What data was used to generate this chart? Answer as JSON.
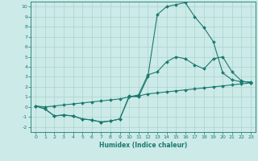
{
  "title": "",
  "xlabel": "Humidex (Indice chaleur)",
  "background_color": "#cceae7",
  "grid_color": "#aad4d0",
  "line_color": "#1a7a6e",
  "xlim": [
    -0.5,
    23.5
  ],
  "ylim": [
    -2.5,
    10.5
  ],
  "xticks": [
    0,
    1,
    2,
    3,
    4,
    5,
    6,
    7,
    8,
    9,
    10,
    11,
    12,
    13,
    14,
    15,
    16,
    17,
    18,
    19,
    20,
    21,
    22,
    23
  ],
  "yticks": [
    -2,
    -1,
    0,
    1,
    2,
    3,
    4,
    5,
    6,
    7,
    8,
    9,
    10
  ],
  "line1_x": [
    0,
    1,
    2,
    3,
    4,
    5,
    6,
    7,
    8,
    9,
    10,
    11,
    12,
    13,
    14,
    15,
    16,
    17,
    18,
    19,
    20,
    21,
    22,
    23
  ],
  "line1_y": [
    0.1,
    -0.2,
    -0.9,
    -0.8,
    -0.9,
    -1.2,
    -1.3,
    -1.5,
    -1.4,
    -1.2,
    1.1,
    1.0,
    3.0,
    9.2,
    10.0,
    10.2,
    10.4,
    9.0,
    7.9,
    6.5,
    3.4,
    2.7,
    2.5,
    2.5
  ],
  "line2_x": [
    0,
    1,
    2,
    3,
    4,
    5,
    6,
    7,
    8,
    9,
    10,
    11,
    12,
    13,
    14,
    15,
    16,
    17,
    18,
    19,
    20,
    21,
    22,
    23
  ],
  "line2_y": [
    0.1,
    -0.2,
    -0.9,
    -0.8,
    -0.9,
    -1.2,
    -1.3,
    -1.5,
    -1.4,
    -1.2,
    1.0,
    1.2,
    3.2,
    3.5,
    4.5,
    5.0,
    4.8,
    4.2,
    3.8,
    4.8,
    5.0,
    3.5,
    2.6,
    2.4
  ],
  "line3_x": [
    0,
    1,
    2,
    3,
    4,
    5,
    6,
    7,
    8,
    9,
    10,
    11,
    12,
    13,
    14,
    15,
    16,
    17,
    18,
    19,
    20,
    21,
    22,
    23
  ],
  "line3_y": [
    0.1,
    0.0,
    0.1,
    0.2,
    0.3,
    0.4,
    0.5,
    0.6,
    0.7,
    0.8,
    1.0,
    1.1,
    1.3,
    1.4,
    1.5,
    1.6,
    1.7,
    1.8,
    1.9,
    2.0,
    2.1,
    2.2,
    2.3,
    2.4
  ],
  "marker": "D",
  "markersize": 2,
  "linewidth": 0.8
}
